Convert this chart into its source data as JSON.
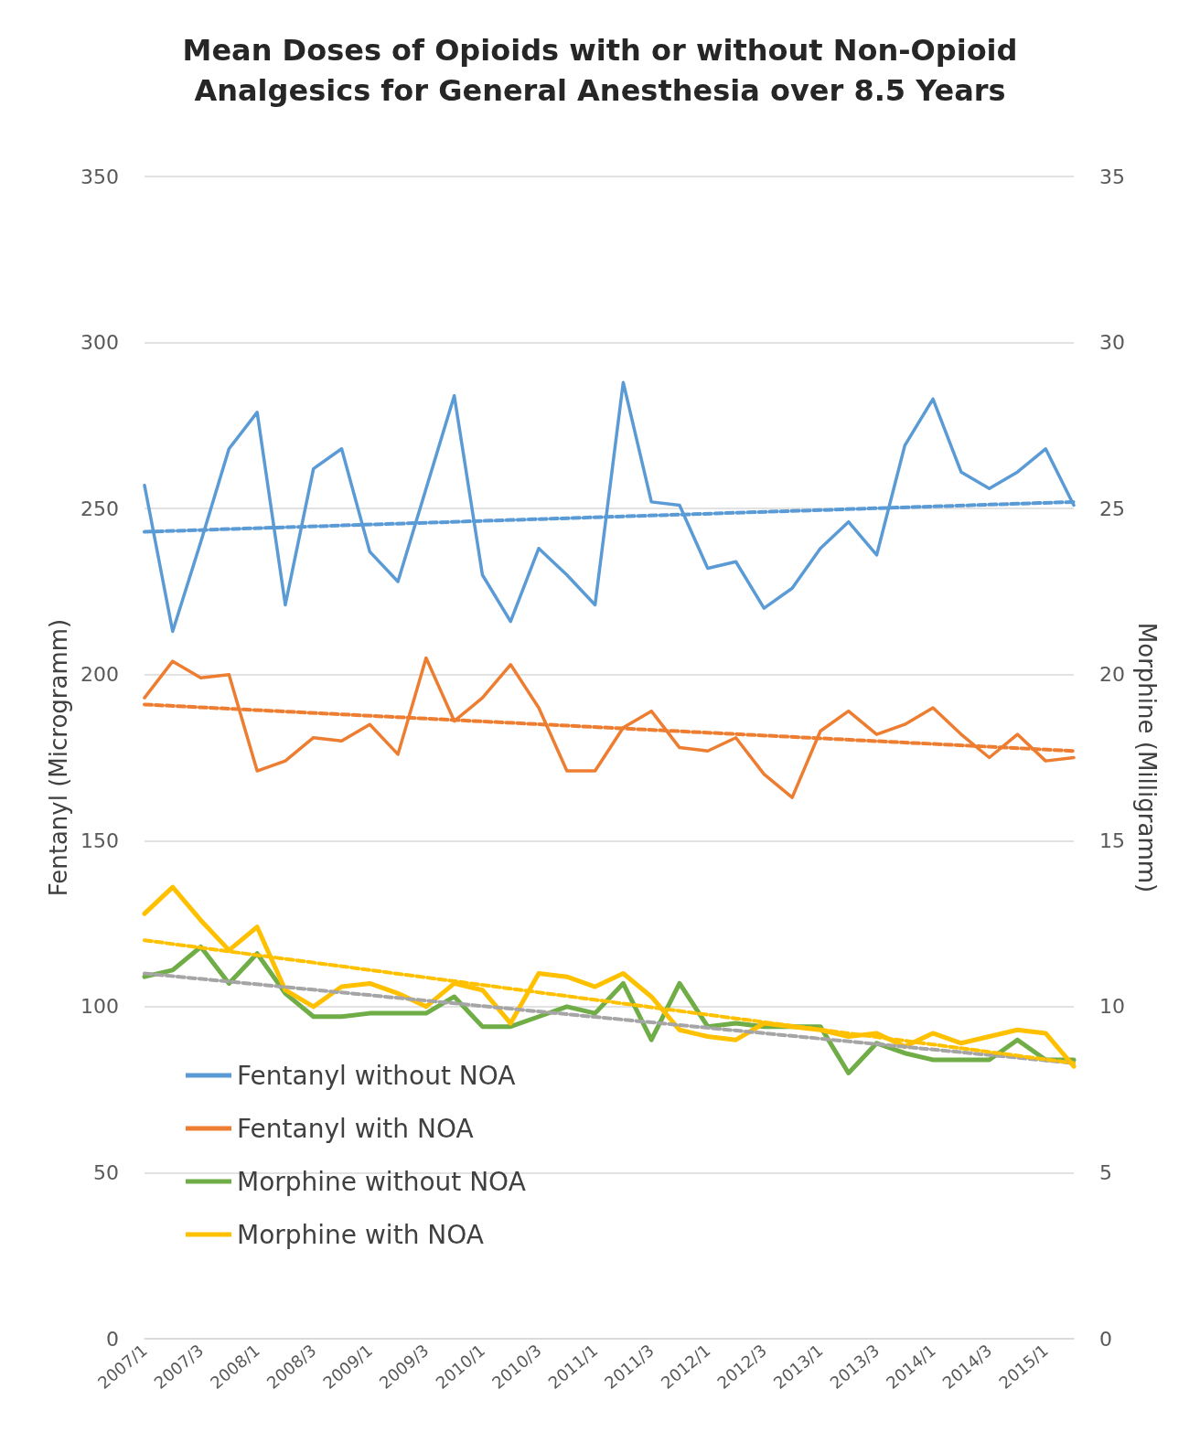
{
  "chart_data": {
    "type": "line",
    "title": "Mean Doses of Opioids with or without Non-Opioid\nAnalgesics for General Anesthesia over 8.5 Years",
    "ylabel": "Fentanyl (Microgramm)",
    "y2label": "Morphine (Milligramm)",
    "categories": [
      "2007/1",
      null,
      "2007/3",
      null,
      "2008/1",
      null,
      "2008/3",
      null,
      "2009/1",
      null,
      "2009/3",
      null,
      "2010/1",
      null,
      "2010/3",
      null,
      "2011/1",
      null,
      "2011/3",
      null,
      "2012/1",
      null,
      "2012/3",
      null,
      "2013/1",
      null,
      "2013/3",
      null,
      "2014/1",
      null,
      "2014/3",
      null,
      "2015/1",
      null
    ],
    "ylim": [
      0,
      350
    ],
    "yticks": [
      0,
      50,
      100,
      150,
      200,
      250,
      300,
      350
    ],
    "y2lim": [
      0,
      35
    ],
    "y2ticks": [
      0,
      5,
      10,
      15,
      20,
      25,
      30,
      35
    ],
    "grid": "y",
    "legend": "bottom left",
    "marker": "none",
    "series": [
      {
        "name": "Fentanyl without NOA",
        "color": "#5b9bd5",
        "line_style": "solid",
        "values": [
          257,
          213,
          240,
          268,
          279,
          221,
          262,
          268,
          237,
          228,
          256,
          284,
          230,
          216,
          238,
          230,
          221,
          288,
          252,
          251,
          232,
          234,
          220,
          226,
          238,
          246,
          236,
          269,
          283,
          261,
          256,
          261,
          268,
          251
        ]
      },
      {
        "name": "Fentanyl with NOA",
        "color": "#ed7d31",
        "line_style": "solid",
        "values": [
          193,
          204,
          199,
          200,
          171,
          174,
          181,
          180,
          185,
          176,
          205,
          186,
          193,
          203,
          190,
          171,
          171,
          184,
          189,
          178,
          177,
          181,
          170,
          163,
          183,
          189,
          182,
          185,
          190,
          182,
          175,
          182,
          174,
          175
        ]
      },
      {
        "name": "Morphine without NOA",
        "color": "#70ad47",
        "axis": "y2",
        "line_style": "solid",
        "values": [
          10.9,
          11.1,
          11.8,
          10.7,
          11.6,
          10.4,
          9.7,
          9.7,
          9.8,
          9.8,
          9.8,
          10.3,
          9.4,
          9.4,
          9.7,
          10.0,
          9.8,
          10.7,
          9.0,
          10.7,
          9.4,
          9.5,
          9.4,
          9.4,
          9.4,
          8.0,
          8.9,
          8.6,
          8.4,
          8.4,
          8.4,
          9.0,
          8.4,
          8.4
        ]
      },
      {
        "name": "Morphine with NOA",
        "color": "#ffc000",
        "axis": "y2",
        "line_style": "solid",
        "values": [
          12.8,
          13.6,
          12.6,
          11.7,
          12.4,
          10.5,
          10.0,
          10.6,
          10.7,
          10.4,
          10.0,
          10.7,
          10.5,
          9.5,
          11.0,
          10.9,
          10.6,
          11.0,
          10.3,
          9.3,
          9.1,
          9.0,
          9.5,
          9.4,
          9.3,
          9.1,
          9.2,
          8.8,
          9.2,
          8.9,
          9.1,
          9.3,
          9.2,
          8.2
        ]
      },
      {
        "color": "#5b9bd5",
        "line_style": "dashed",
        "values": [
          243,
          null,
          null,
          null,
          null,
          null,
          null,
          null,
          null,
          null,
          null,
          null,
          null,
          null,
          null,
          null,
          null,
          null,
          null,
          null,
          null,
          null,
          null,
          null,
          null,
          null,
          null,
          null,
          null,
          null,
          null,
          null,
          null,
          252
        ]
      },
      {
        "color": "#ed7d31",
        "line_style": "dashed",
        "values": [
          191,
          null,
          null,
          null,
          null,
          null,
          null,
          null,
          null,
          null,
          null,
          null,
          null,
          null,
          null,
          null,
          null,
          null,
          null,
          null,
          null,
          null,
          null,
          null,
          null,
          null,
          null,
          null,
          null,
          null,
          null,
          null,
          null,
          177
        ]
      },
      {
        "color": "#a5a5a5",
        "axis": "y2",
        "line_style": "dashed",
        "values": [
          11.0,
          null,
          null,
          null,
          null,
          null,
          null,
          null,
          null,
          null,
          null,
          null,
          null,
          null,
          null,
          null,
          null,
          null,
          null,
          null,
          null,
          null,
          null,
          null,
          null,
          null,
          null,
          null,
          null,
          null,
          null,
          null,
          null,
          8.3
        ]
      },
      {
        "color": "#ffc000",
        "axis": "y2",
        "line_style": "dashed",
        "values": [
          12.0,
          null,
          null,
          null,
          null,
          null,
          null,
          null,
          null,
          null,
          null,
          null,
          null,
          null,
          null,
          null,
          null,
          null,
          null,
          null,
          null,
          null,
          null,
          null,
          null,
          null,
          null,
          null,
          null,
          null,
          null,
          null,
          null,
          8.3
        ]
      }
    ]
  }
}
